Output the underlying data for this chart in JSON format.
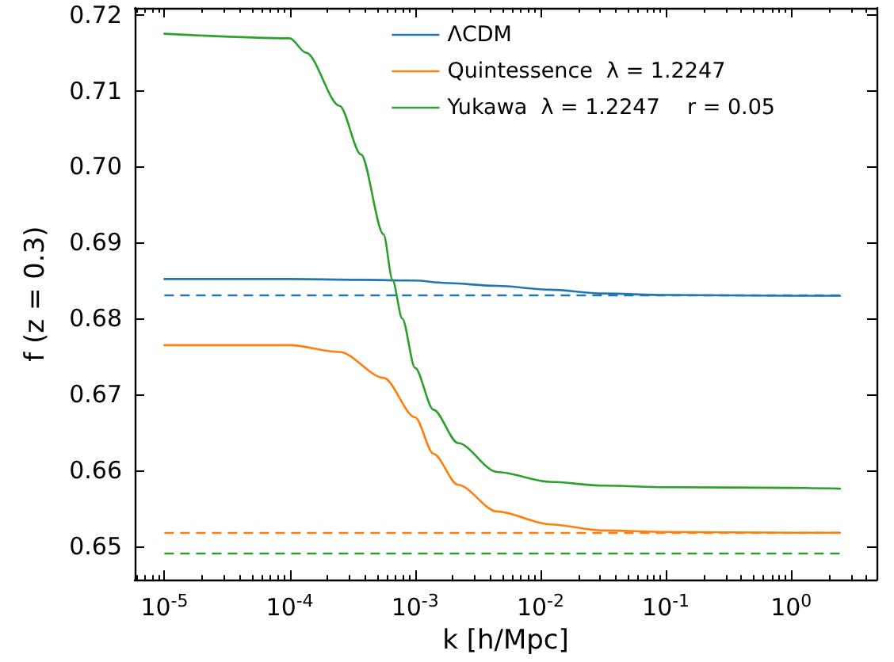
{
  "chart_data": {
    "type": "line",
    "xlabel": "k [h/Mpc]",
    "ylabel": "f (z = 0.3)",
    "log": "x",
    "legend": "top right",
    "grid": false,
    "marker": "none",
    "line_style": "solid",
    "xlim": [
      5.8e-06,
      4.8
    ],
    "xticks": [
      {
        "value": 1e-05,
        "label": "10$^{-5}$"
      },
      {
        "value": 0.0001,
        "label": "10$^{-4}$"
      },
      {
        "value": 0.001,
        "label": "10$^{-3}$"
      },
      {
        "value": 0.01,
        "label": "10$^{-2}$"
      },
      {
        "value": 0.1,
        "label": "10$^{-1}$"
      },
      {
        "value": 1,
        "label": "10$^{0}$"
      }
    ],
    "ylim": [
      0.6456,
      0.7209
    ],
    "yticks": [
      0.65,
      0.66,
      0.67,
      0.68,
      0.69,
      {
        "value": 0.7,
        "label": "0.70"
      },
      0.71,
      0.72
    ],
    "series": [
      {
        "name": "ΛCDM",
        "color": "#1f77b4",
        "x": [
          1e-05,
          0.0001,
          0.00037,
          0.001,
          0.0017,
          0.0045,
          0.012,
          0.031,
          0.1,
          1,
          2.45
        ],
        "values": [
          0.6852,
          0.6852,
          0.6851,
          0.685,
          0.6847,
          0.6843,
          0.6838,
          0.6833,
          0.6831,
          0.683,
          0.683
        ]
      },
      {
        "name": "Quintessence  λ = 1.2247",
        "color": "#ff7f0e",
        "x": [
          1e-05,
          0.0001,
          0.00025,
          0.00056,
          0.001,
          0.0014,
          0.0022,
          0.0045,
          0.012,
          0.031,
          0.1,
          1,
          2.45
        ],
        "values": [
          0.6765,
          0.6765,
          0.6756,
          0.6722,
          0.667,
          0.6622,
          0.6581,
          0.6546,
          0.6529,
          0.6521,
          0.6519,
          0.6518,
          0.6518
        ]
      },
      {
        "name": "Yukawa  λ = 1.2247    r = 0.05",
        "color": "#2ca02c",
        "x": [
          1e-05,
          0.0001,
          0.000135,
          0.00025,
          0.00037,
          0.00056,
          0.00066,
          0.00079,
          0.001,
          0.0014,
          0.0022,
          0.0045,
          0.012,
          0.031,
          0.1,
          1,
          2.45
        ],
        "values": [
          0.7175,
          0.7169,
          0.715,
          0.708,
          0.7016,
          0.6911,
          0.6851,
          0.68,
          0.6735,
          0.668,
          0.6636,
          0.6598,
          0.6585,
          0.658,
          0.6578,
          0.6577,
          0.6576
        ]
      }
    ],
    "ref_lines": [
      {
        "axis": "y",
        "value": 0.683,
        "color": "#1f77b4",
        "line_style": "dashed"
      },
      {
        "axis": "y",
        "value": 0.6518,
        "color": "#ff7f0e",
        "line_style": "dashed"
      },
      {
        "axis": "y",
        "value": 0.6492,
        "color": "#2ca02c",
        "line_style": "dashed"
      }
    ]
  }
}
